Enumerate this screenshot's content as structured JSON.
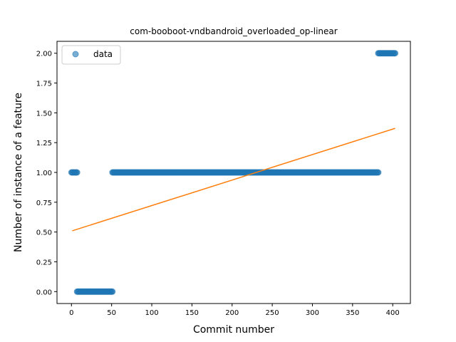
{
  "chart_data": {
    "type": "scatter",
    "title": "com-booboot-vndbandroid_overloaded_op-linear",
    "xlabel": "Commit number",
    "ylabel": "Number of instance of a feature",
    "xlim": [
      -18,
      422
    ],
    "ylim": [
      -0.1,
      2.1
    ],
    "xticks": [
      0,
      50,
      100,
      150,
      200,
      250,
      300,
      350,
      400
    ],
    "yticks": [
      0.0,
      0.25,
      0.5,
      0.75,
      1.0,
      1.25,
      1.5,
      1.75,
      2.0
    ],
    "ytick_labels": [
      "0.00",
      "0.25",
      "0.50",
      "0.75",
      "1.00",
      "1.25",
      "1.50",
      "1.75",
      "2.00"
    ],
    "grid": false,
    "legend": {
      "position": "top-left",
      "entries": [
        "data"
      ]
    },
    "series": [
      {
        "name": "data",
        "kind": "points",
        "color": "#1f77b4",
        "segments": [
          {
            "x_start": 0,
            "x_end": 7,
            "y": 1
          },
          {
            "x_start": 7,
            "x_end": 51,
            "y": 0
          },
          {
            "x_start": 51,
            "x_end": 382,
            "y": 1
          },
          {
            "x_start": 382,
            "x_end": 403,
            "y": 2
          }
        ]
      },
      {
        "kind": "line",
        "color": "#ff7f0e",
        "x": [
          1,
          403
        ],
        "y": [
          0.51,
          1.37
        ]
      }
    ]
  }
}
